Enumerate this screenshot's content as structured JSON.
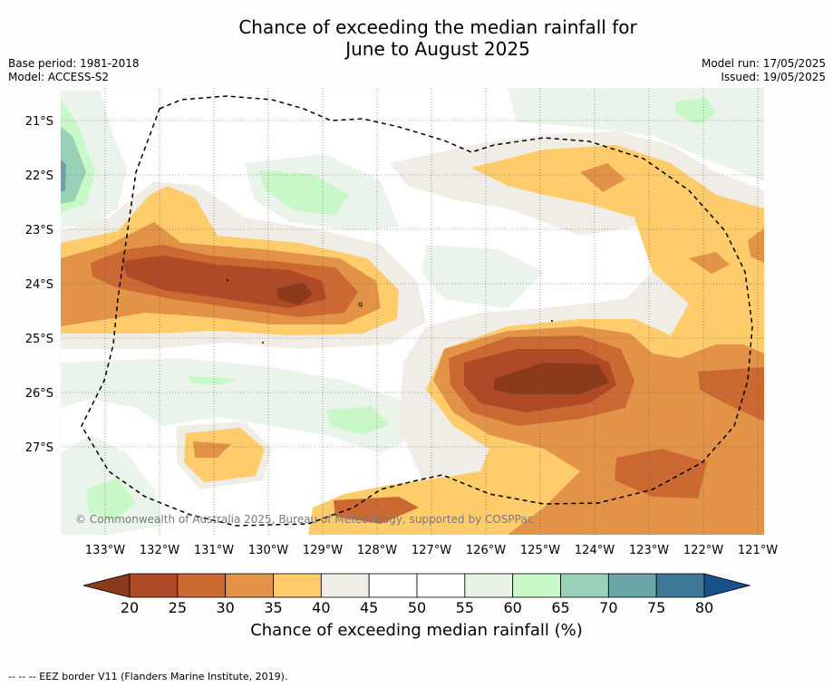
{
  "title_line1": "Chance of exceeding the median rainfall for",
  "title_line2": "June to August 2025",
  "base_period": "Base period: 1981-2018",
  "model": "Model: ACCESS-S2",
  "model_run": "Model run: 17/05/2025",
  "issued": "Issued: 19/05/2025",
  "copyright": "© Commonwealth of Australia 2025, Bureau of Meteorology, supported by COSPPac",
  "lat_labels": [
    "21°S",
    "22°S",
    "23°S",
    "24°S",
    "25°S",
    "26°S",
    "27°S"
  ],
  "lon_labels": [
    "133°W",
    "132°W",
    "131°W",
    "130°W",
    "129°W",
    "128°W",
    "127°W",
    "126°W",
    "125°W",
    "124°W",
    "123°W",
    "122°W",
    "121°W"
  ],
  "colorbar": {
    "ticks": [
      "20",
      "25",
      "30",
      "35",
      "40",
      "45",
      "50",
      "55",
      "60",
      "65",
      "70",
      "75",
      "80"
    ],
    "colors": [
      "#8c3a1c",
      "#b04a26",
      "#cc6832",
      "#e29348",
      "#fecc6a",
      "#f0ece6",
      "#ffffff",
      "#ffffff",
      "#e6f3e6",
      "#c8f8c8",
      "#98d0b8",
      "#6aa4a6",
      "#3d7896",
      "#18508a"
    ],
    "title": "Chance of exceeding median rainfall (%)"
  },
  "footnote": "--  --  -- EEZ border V11 (Flanders Marine Institute, 2019).",
  "map_marks": [
    "q"
  ]
}
